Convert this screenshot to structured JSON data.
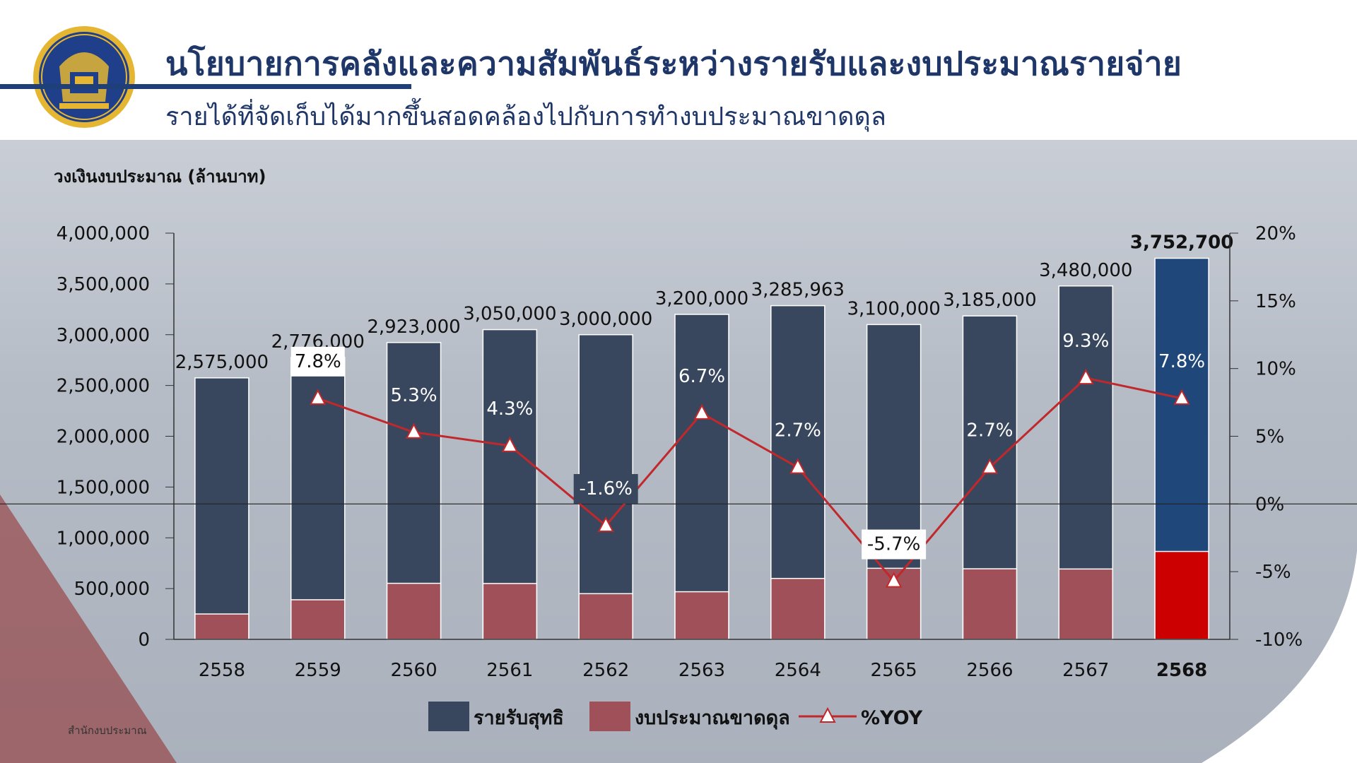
{
  "header": {
    "title": "นโยบายการคลังและความสัมพันธ์ระหว่างรายรับและงบประมาณรายจ่าย",
    "subtitle": "รายได้ที่จัดเก็บได้มากขึ้นสอดคล้องไปกับการทำงบประมาณขาดดุล",
    "rule_color": "#1f3f78"
  },
  "source": "สำนักงบประมาณ",
  "colors": {
    "revenue": "#38475d",
    "revenue_highlight": "#1f477a",
    "deficit": "#a05058",
    "deficit_highlight": "#cc0000",
    "yoy_line": "#c0282c",
    "text": "#111111"
  },
  "chart_data": {
    "type": "bar",
    "stacked": "overlay",
    "ylabel": "วงเงินงบประมาณ (ล้านบาท)",
    "ylim": [
      0,
      4000000
    ],
    "yticks": [
      "0",
      "500,000",
      "1,000,000",
      "1,500,000",
      "2,000,000",
      "2,500,000",
      "3,000,000",
      "3,500,000",
      "4,000,000"
    ],
    "y2lim": [
      -10,
      20
    ],
    "y2ticks": [
      "-10%",
      "-5%",
      "0%",
      "5%",
      "10%",
      "15%",
      "20%"
    ],
    "categories": [
      "2558",
      "2559",
      "2560",
      "2561",
      "2562",
      "2563",
      "2564",
      "2565",
      "2566",
      "2567",
      "2568"
    ],
    "highlight_category": "2568",
    "series": [
      {
        "name": "รายรับสุทธิ",
        "values": [
          2575000,
          2776000,
          2923000,
          3050000,
          3000000,
          3200000,
          3285963,
          3100000,
          3185000,
          3480000,
          3752700
        ],
        "labels": [
          "2,575,000",
          "2,776,000",
          "2,923,000",
          "3,050,000",
          "3,000,000",
          "3,200,000",
          "3,285,963",
          "3,100,000",
          "3,185,000",
          "3,480,000",
          "3,752,700"
        ]
      },
      {
        "name": "งบประมาณขาดดุล",
        "values": [
          250000,
          390000,
          552000,
          550000,
          450000,
          469000,
          600000,
          700000,
          695000,
          693000,
          865700
        ]
      },
      {
        "name": "%YOY",
        "axis": "right",
        "values": [
          null,
          7.8,
          5.3,
          4.3,
          -1.6,
          6.7,
          2.7,
          -5.7,
          2.7,
          9.3,
          7.8
        ],
        "labels": [
          "",
          "7.8%",
          "5.3%",
          "4.3%",
          "-1.6%",
          "6.7%",
          "2.7%",
          "-5.7%",
          "2.7%",
          "9.3%",
          "7.8%"
        ]
      }
    ],
    "legend": [
      {
        "name": "รายรับสุทธิ",
        "type": "bar",
        "key": "revenue"
      },
      {
        "name": "งบประมาณขาดดุล",
        "type": "bar",
        "key": "deficit"
      },
      {
        "name": "%YOY",
        "type": "line",
        "key": "yoy"
      }
    ],
    "legend_position": "bottom",
    "grid": false
  }
}
